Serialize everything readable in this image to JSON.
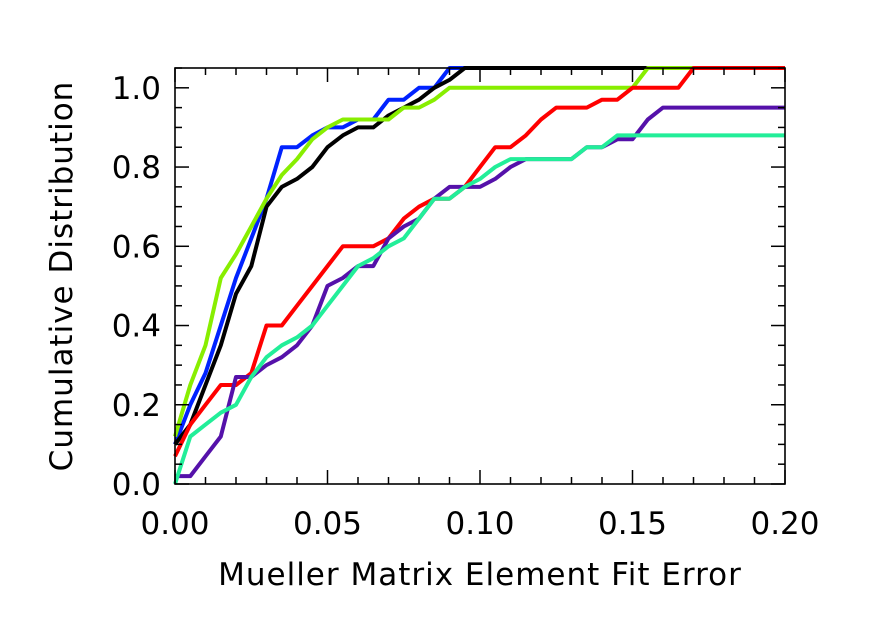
{
  "chart_data": {
    "type": "line",
    "title": "",
    "xlabel": "Mueller Matrix Element Fit Error",
    "ylabel": "Cumulative Distribution",
    "xlim": [
      0.0,
      0.2
    ],
    "ylim": [
      0.0,
      1.05
    ],
    "x_ticks": [
      "0.00",
      "0.05",
      "0.10",
      "0.15",
      "0.20"
    ],
    "x_tick_values": [
      0.0,
      0.05,
      0.1,
      0.15,
      0.2
    ],
    "y_ticks": [
      "0.0",
      "0.2",
      "0.4",
      "0.6",
      "0.8",
      "1.0"
    ],
    "y_tick_values": [
      0.0,
      0.2,
      0.4,
      0.6,
      0.8,
      1.0
    ],
    "grid": false,
    "legend": "none",
    "series": [
      {
        "color": "#0022ff",
        "points": [
          [
            0.0,
            0.1
          ],
          [
            0.005,
            0.2
          ],
          [
            0.01,
            0.28
          ],
          [
            0.015,
            0.4
          ],
          [
            0.02,
            0.52
          ],
          [
            0.025,
            0.62
          ],
          [
            0.03,
            0.72
          ],
          [
            0.035,
            0.85
          ],
          [
            0.04,
            0.85
          ],
          [
            0.045,
            0.88
          ],
          [
            0.05,
            0.9
          ],
          [
            0.055,
            0.9
          ],
          [
            0.06,
            0.92
          ],
          [
            0.065,
            0.92
          ],
          [
            0.07,
            0.97
          ],
          [
            0.075,
            0.97
          ],
          [
            0.08,
            1.0
          ],
          [
            0.085,
            1.0
          ],
          [
            0.09,
            1.05
          ],
          [
            0.2,
            1.05
          ]
        ]
      },
      {
        "color": "#000000",
        "points": [
          [
            0.0,
            0.1
          ],
          [
            0.005,
            0.15
          ],
          [
            0.01,
            0.25
          ],
          [
            0.015,
            0.35
          ],
          [
            0.02,
            0.48
          ],
          [
            0.025,
            0.55
          ],
          [
            0.03,
            0.7
          ],
          [
            0.035,
            0.75
          ],
          [
            0.04,
            0.77
          ],
          [
            0.045,
            0.8
          ],
          [
            0.05,
            0.85
          ],
          [
            0.055,
            0.88
          ],
          [
            0.06,
            0.9
          ],
          [
            0.065,
            0.9
          ],
          [
            0.07,
            0.93
          ],
          [
            0.075,
            0.95
          ],
          [
            0.08,
            0.97
          ],
          [
            0.085,
            1.0
          ],
          [
            0.09,
            1.02
          ],
          [
            0.095,
            1.05
          ],
          [
            0.2,
            1.05
          ]
        ]
      },
      {
        "color": "#88ee00",
        "points": [
          [
            0.0,
            0.12
          ],
          [
            0.005,
            0.25
          ],
          [
            0.01,
            0.35
          ],
          [
            0.015,
            0.52
          ],
          [
            0.02,
            0.58
          ],
          [
            0.025,
            0.65
          ],
          [
            0.03,
            0.72
          ],
          [
            0.035,
            0.78
          ],
          [
            0.04,
            0.82
          ],
          [
            0.045,
            0.87
          ],
          [
            0.05,
            0.9
          ],
          [
            0.055,
            0.92
          ],
          [
            0.06,
            0.92
          ],
          [
            0.065,
            0.92
          ],
          [
            0.07,
            0.92
          ],
          [
            0.075,
            0.95
          ],
          [
            0.08,
            0.95
          ],
          [
            0.085,
            0.97
          ],
          [
            0.09,
            1.0
          ],
          [
            0.095,
            1.0
          ],
          [
            0.15,
            1.0
          ],
          [
            0.155,
            1.05
          ],
          [
            0.2,
            1.05
          ]
        ]
      },
      {
        "color": "#ff0000",
        "points": [
          [
            0.0,
            0.07
          ],
          [
            0.005,
            0.15
          ],
          [
            0.01,
            0.2
          ],
          [
            0.015,
            0.25
          ],
          [
            0.02,
            0.25
          ],
          [
            0.025,
            0.28
          ],
          [
            0.03,
            0.4
          ],
          [
            0.035,
            0.4
          ],
          [
            0.04,
            0.45
          ],
          [
            0.045,
            0.5
          ],
          [
            0.05,
            0.55
          ],
          [
            0.055,
            0.6
          ],
          [
            0.06,
            0.6
          ],
          [
            0.065,
            0.6
          ],
          [
            0.07,
            0.62
          ],
          [
            0.075,
            0.67
          ],
          [
            0.08,
            0.7
          ],
          [
            0.085,
            0.72
          ],
          [
            0.09,
            0.72
          ],
          [
            0.095,
            0.75
          ],
          [
            0.1,
            0.8
          ],
          [
            0.105,
            0.85
          ],
          [
            0.11,
            0.85
          ],
          [
            0.115,
            0.88
          ],
          [
            0.12,
            0.92
          ],
          [
            0.125,
            0.95
          ],
          [
            0.13,
            0.95
          ],
          [
            0.135,
            0.95
          ],
          [
            0.14,
            0.97
          ],
          [
            0.145,
            0.97
          ],
          [
            0.15,
            1.0
          ],
          [
            0.155,
            1.0
          ],
          [
            0.16,
            1.0
          ],
          [
            0.165,
            1.0
          ],
          [
            0.17,
            1.05
          ],
          [
            0.2,
            1.05
          ]
        ]
      },
      {
        "color": "#5511aa",
        "points": [
          [
            0.0,
            0.02
          ],
          [
            0.005,
            0.02
          ],
          [
            0.01,
            0.07
          ],
          [
            0.015,
            0.12
          ],
          [
            0.02,
            0.27
          ],
          [
            0.025,
            0.27
          ],
          [
            0.03,
            0.3
          ],
          [
            0.035,
            0.32
          ],
          [
            0.04,
            0.35
          ],
          [
            0.045,
            0.4
          ],
          [
            0.05,
            0.5
          ],
          [
            0.055,
            0.52
          ],
          [
            0.06,
            0.55
          ],
          [
            0.065,
            0.55
          ],
          [
            0.07,
            0.62
          ],
          [
            0.075,
            0.65
          ],
          [
            0.08,
            0.67
          ],
          [
            0.085,
            0.72
          ],
          [
            0.09,
            0.75
          ],
          [
            0.095,
            0.75
          ],
          [
            0.1,
            0.75
          ],
          [
            0.105,
            0.77
          ],
          [
            0.11,
            0.8
          ],
          [
            0.115,
            0.82
          ],
          [
            0.12,
            0.82
          ],
          [
            0.125,
            0.82
          ],
          [
            0.13,
            0.82
          ],
          [
            0.135,
            0.85
          ],
          [
            0.14,
            0.85
          ],
          [
            0.145,
            0.87
          ],
          [
            0.15,
            0.87
          ],
          [
            0.155,
            0.92
          ],
          [
            0.16,
            0.95
          ],
          [
            0.2,
            0.95
          ]
        ]
      },
      {
        "color": "#22ee99",
        "points": [
          [
            0.0,
            0.0
          ],
          [
            0.005,
            0.12
          ],
          [
            0.01,
            0.15
          ],
          [
            0.015,
            0.18
          ],
          [
            0.02,
            0.2
          ],
          [
            0.025,
            0.27
          ],
          [
            0.03,
            0.32
          ],
          [
            0.035,
            0.35
          ],
          [
            0.04,
            0.37
          ],
          [
            0.045,
            0.4
          ],
          [
            0.05,
            0.45
          ],
          [
            0.055,
            0.5
          ],
          [
            0.06,
            0.55
          ],
          [
            0.065,
            0.57
          ],
          [
            0.07,
            0.6
          ],
          [
            0.075,
            0.62
          ],
          [
            0.08,
            0.67
          ],
          [
            0.085,
            0.72
          ],
          [
            0.09,
            0.72
          ],
          [
            0.095,
            0.75
          ],
          [
            0.1,
            0.77
          ],
          [
            0.105,
            0.8
          ],
          [
            0.11,
            0.82
          ],
          [
            0.115,
            0.82
          ],
          [
            0.12,
            0.82
          ],
          [
            0.125,
            0.82
          ],
          [
            0.13,
            0.82
          ],
          [
            0.135,
            0.85
          ],
          [
            0.14,
            0.85
          ],
          [
            0.145,
            0.88
          ],
          [
            0.15,
            0.88
          ],
          [
            0.2,
            0.88
          ]
        ]
      }
    ]
  }
}
